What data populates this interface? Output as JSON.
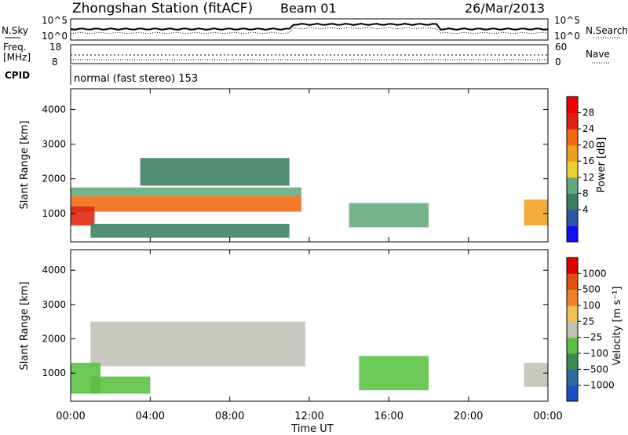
{
  "header": {
    "station": "Zhongshan Station (fitACF)",
    "beam": "Beam 01",
    "date": "26/Mar/2013"
  },
  "noise_panel": {
    "left_label": "N.Sky",
    "left_ticks": [
      "10^5",
      "10^0"
    ],
    "right_label": "N.Search",
    "right_ticks": [
      "10^5",
      "10^0"
    ]
  },
  "freq_panel": {
    "label_line1": "Freq.",
    "label_line2": "[MHz]",
    "ticks": [
      "18",
      "8"
    ],
    "right_label": "Nave",
    "right_ticks": [
      "60",
      "0"
    ]
  },
  "cpid_panel": {
    "label": "CPID",
    "program": "normal (fast stereo) 153"
  },
  "power_panel": {
    "ylabel": "Slant Range [km]",
    "yticks": [
      "4000",
      "3000",
      "2000",
      "1000"
    ],
    "colorbar_label": "Power [dB]",
    "colorbar_ticks": [
      "28",
      "24",
      "20",
      "16",
      "12",
      "8",
      "4"
    ],
    "colors": [
      "#1010f0",
      "#2c58a8",
      "#3a8060",
      "#62a87a",
      "#f0d030",
      "#f0a020",
      "#f06a10",
      "#e02010",
      "#f00000"
    ]
  },
  "velocity_panel": {
    "ylabel": "Slant Range [km]",
    "yticks": [
      "4000",
      "3000",
      "2000",
      "1000"
    ],
    "colorbar_label": "Velocity [m s⁻¹]",
    "colorbar_ticks": [
      "1000",
      "500",
      "100",
      "25",
      "−25",
      "−100",
      "−500",
      "−1000"
    ],
    "colors": [
      "#1f4ec0",
      "#2d6aa0",
      "#3c8c50",
      "#58c040",
      "#c0c0b4",
      "#f0c050",
      "#f08020",
      "#e05010",
      "#e00000"
    ]
  },
  "xaxis": {
    "ticks": [
      "00:00",
      "04:00",
      "08:00",
      "12:00",
      "16:00",
      "20:00",
      "00:00"
    ],
    "label": "Time UT"
  },
  "chart_data": [
    {
      "type": "heatmap",
      "title": "Power",
      "x_unit": "hours UT",
      "y_unit": "km",
      "xlim": [
        0,
        24
      ],
      "ylim": [
        180,
        4600
      ],
      "zlabel": "Power [dB]",
      "zlim": [
        0,
        30
      ],
      "bands": [
        {
          "x": [
            0,
            11.6
          ],
          "y": [
            1050,
            1500
          ],
          "z": 20
        },
        {
          "x": [
            0,
            11.6
          ],
          "y": [
            1500,
            1750
          ],
          "z": 12
        },
        {
          "x": [
            3.5,
            11.0
          ],
          "y": [
            1800,
            2600
          ],
          "z": 9
        },
        {
          "x": [
            0,
            1.2
          ],
          "y": [
            650,
            1200
          ],
          "z": 26
        },
        {
          "x": [
            1.0,
            11.0
          ],
          "y": [
            300,
            700
          ],
          "z": 8
        },
        {
          "x": [
            14.0,
            18.0
          ],
          "y": [
            600,
            1300
          ],
          "z": 10
        },
        {
          "x": [
            22.8,
            24
          ],
          "y": [
            650,
            1400
          ],
          "z": 18
        }
      ]
    },
    {
      "type": "heatmap",
      "title": "Velocity",
      "x_unit": "hours UT",
      "y_unit": "km",
      "xlim": [
        0,
        24
      ],
      "ylim": [
        180,
        4600
      ],
      "zlabel": "Velocity [m s⁻¹]",
      "zlim": [
        -1000,
        1000
      ],
      "bands": [
        {
          "x": [
            1.0,
            11.8
          ],
          "y": [
            1200,
            2500
          ],
          "z": 0
        },
        {
          "x": [
            0,
            1.5
          ],
          "y": [
            400,
            1300
          ],
          "z": -150
        },
        {
          "x": [
            1.0,
            4.0
          ],
          "y": [
            400,
            900
          ],
          "z": -120
        },
        {
          "x": [
            14.5,
            18.0
          ],
          "y": [
            500,
            1500
          ],
          "z": -200
        },
        {
          "x": [
            22.8,
            24
          ],
          "y": [
            600,
            1300
          ],
          "z": 60
        }
      ]
    }
  ]
}
